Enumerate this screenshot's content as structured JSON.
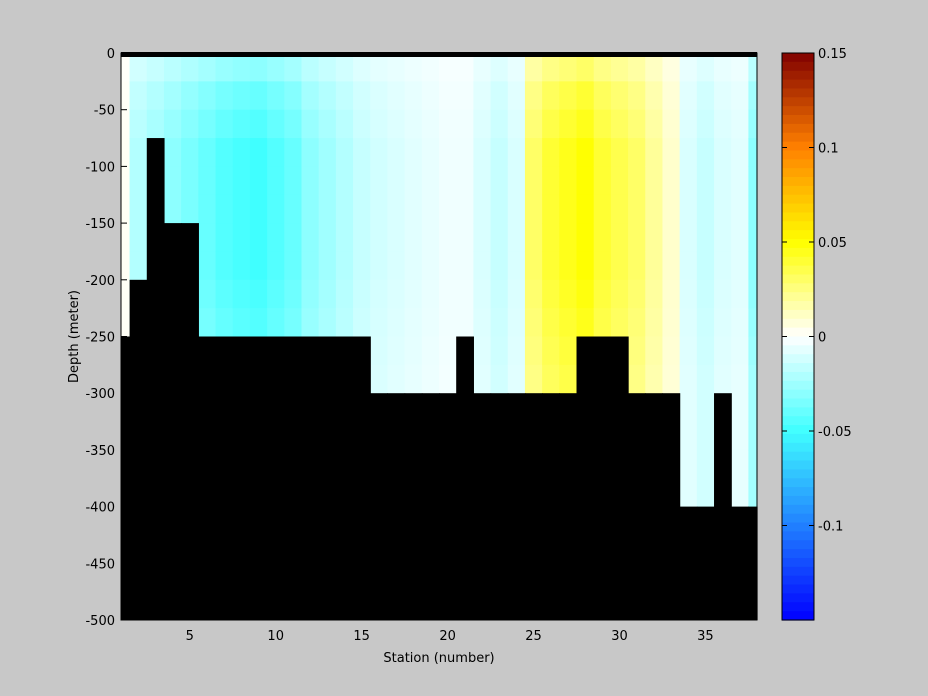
{
  "chart_data": {
    "type": "heatmap",
    "title": "",
    "xlabel": "Station (number)",
    "ylabel": "Depth (meter)",
    "xlim": [
      1,
      38
    ],
    "ylim": [
      -500,
      0
    ],
    "xticks": [
      5,
      10,
      15,
      20,
      25,
      30,
      35
    ],
    "yticks": [
      0,
      -50,
      -100,
      -150,
      -200,
      -250,
      -300,
      -350,
      -400,
      -450,
      -500
    ],
    "colorbar": {
      "clim": [
        -0.15,
        0.15
      ],
      "ticks": [
        0.15,
        0.1,
        0.05,
        0,
        -0.05,
        -0.1
      ],
      "colormap": "jet-with-white-center",
      "colors": [
        "#0000ff",
        "#40ffff",
        "#ffffff",
        "#ffff00",
        "#ff8000",
        "#800000"
      ]
    },
    "land_color": "#000000",
    "stations": [
      1,
      2,
      3,
      4,
      5,
      6,
      7,
      8,
      9,
      10,
      11,
      12,
      13,
      14,
      15,
      16,
      17,
      18,
      19,
      20,
      21,
      22,
      23,
      24,
      25,
      26,
      27,
      28,
      29,
      30,
      31,
      32,
      33,
      34,
      35,
      36,
      37,
      38
    ],
    "bottom_depth": [
      -250,
      -200,
      -75,
      -150,
      -150,
      -250,
      -250,
      -250,
      -250,
      -250,
      -250,
      -250,
      -250,
      -250,
      -250,
      -300,
      -300,
      -300,
      -300,
      -300,
      -250,
      -300,
      -300,
      -300,
      -300,
      -300,
      -300,
      -250,
      -250,
      -250,
      -300,
      -300,
      -300,
      -400,
      -400,
      -300,
      -400,
      -400
    ],
    "depth_levels": [
      0,
      -25,
      -50,
      -75,
      -100,
      -125,
      -150,
      -175,
      -200,
      -225,
      -250,
      -275,
      -300,
      -325,
      -350,
      -375,
      -400
    ],
    "profile_by_station": [
      0.002,
      -0.02,
      -0.025,
      -0.03,
      -0.035,
      -0.04,
      -0.045,
      -0.048,
      -0.05,
      -0.045,
      -0.04,
      -0.03,
      -0.025,
      -0.02,
      -0.015,
      -0.012,
      -0.01,
      -0.008,
      -0.006,
      -0.004,
      -0.004,
      -0.01,
      -0.015,
      -0.01,
      0.03,
      0.04,
      0.045,
      0.05,
      0.04,
      0.035,
      0.03,
      0.02,
      0.01,
      -0.01,
      -0.015,
      -0.01,
      -0.008,
      -0.03
    ],
    "depth_weights": [
      0.6,
      0.8,
      0.9,
      1.0,
      1.0,
      1.0,
      1.0,
      1.0,
      0.95,
      0.9,
      0.85,
      0.8,
      0.8,
      0.8,
      0.8,
      0.8,
      0.8
    ]
  }
}
